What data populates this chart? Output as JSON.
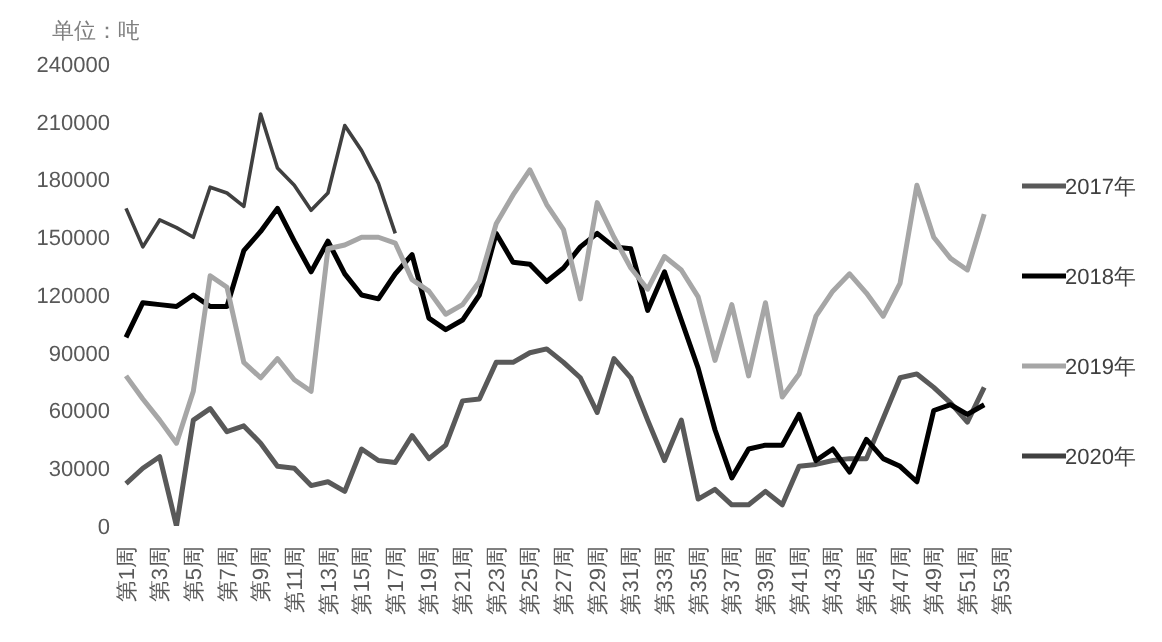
{
  "chart_data": {
    "type": "line",
    "ylabel": "单位：吨",
    "categories": [
      "第1周",
      null,
      "第3周",
      null,
      "第5周",
      null,
      "第7周",
      null,
      "第9周",
      null,
      "第11周",
      null,
      "第13周",
      null,
      "第15周",
      null,
      "第17周",
      null,
      "第19周",
      null,
      "第21周",
      null,
      "第23周",
      null,
      "第25周",
      null,
      "第27周",
      null,
      "第29周",
      null,
      "第31周",
      null,
      "第33周",
      null,
      "第35周",
      null,
      "第37周",
      null,
      "第39周",
      null,
      "第41周",
      null,
      "第43周",
      null,
      "第45周",
      null,
      "第47周",
      null,
      "第49周",
      null,
      "第51周",
      null,
      "第53周"
    ],
    "series": [
      {
        "name": "2017年",
        "color": "#595959",
        "values": [
          22000,
          30000,
          36000,
          0,
          55000,
          61000,
          49000,
          52000,
          43000,
          31000,
          30000,
          21000,
          23000,
          18000,
          40000,
          34000,
          33000,
          47000,
          35000,
          42000,
          65000,
          66000,
          85000,
          85000,
          90000,
          92000,
          85000,
          77000,
          59000,
          87000,
          77000,
          55000,
          34000,
          55000,
          14000,
          19000,
          11000,
          11000,
          18000,
          11000,
          31000,
          32000,
          34000,
          35000,
          35000,
          56000,
          77000,
          79000,
          72000,
          64000,
          54000,
          72000,
          null
        ]
      },
      {
        "name": "2018年",
        "color": "#000000",
        "values": [
          98000,
          116000,
          115000,
          114000,
          120000,
          114000,
          114000,
          143000,
          153000,
          165000,
          148000,
          132000,
          148000,
          131000,
          120000,
          118000,
          131000,
          141000,
          108000,
          102000,
          107000,
          120000,
          152000,
          137000,
          136000,
          127000,
          134000,
          145000,
          152000,
          145000,
          144000,
          112000,
          132000,
          107000,
          82000,
          50000,
          25000,
          40000,
          42000,
          42000,
          58000,
          34000,
          40000,
          28000,
          45000,
          35000,
          31000,
          23000,
          60000,
          63000,
          58000,
          63000,
          null
        ]
      },
      {
        "name": "2019年",
        "color": "#a6a6a6",
        "values": [
          78000,
          66000,
          55000,
          43000,
          70000,
          130000,
          124000,
          85000,
          77000,
          87000,
          76000,
          70000,
          144000,
          146000,
          150000,
          150000,
          147000,
          128000,
          122000,
          110000,
          115000,
          127000,
          157000,
          172000,
          185000,
          167000,
          154000,
          118000,
          168000,
          150000,
          134000,
          123000,
          140000,
          133000,
          119000,
          86000,
          115000,
          78000,
          116000,
          67000,
          79000,
          109000,
          122000,
          131000,
          121000,
          109000,
          126000,
          177000,
          150000,
          139000,
          133000,
          162000,
          null
        ]
      },
      {
        "name": "2020年",
        "color": "#404040",
        "values": [
          165000,
          145000,
          159000,
          155000,
          150000,
          176000,
          173000,
          166000,
          214000,
          186000,
          177000,
          164000,
          173000,
          208000,
          195000,
          178000,
          152000,
          null,
          null,
          null,
          null,
          null,
          null,
          null,
          null,
          null,
          null,
          null,
          null,
          null,
          null,
          null,
          null,
          null,
          null,
          null,
          null,
          null,
          null,
          null,
          null,
          null,
          null,
          null,
          null,
          null,
          null,
          null,
          null,
          null,
          null,
          null,
          null
        ]
      }
    ],
    "ylim": [
      0,
      240000
    ],
    "yticks": [
      0,
      30000,
      60000,
      90000,
      120000,
      150000,
      180000,
      210000,
      240000
    ],
    "legend": "right",
    "grid": false,
    "marker": "none",
    "line_style": "solid"
  }
}
